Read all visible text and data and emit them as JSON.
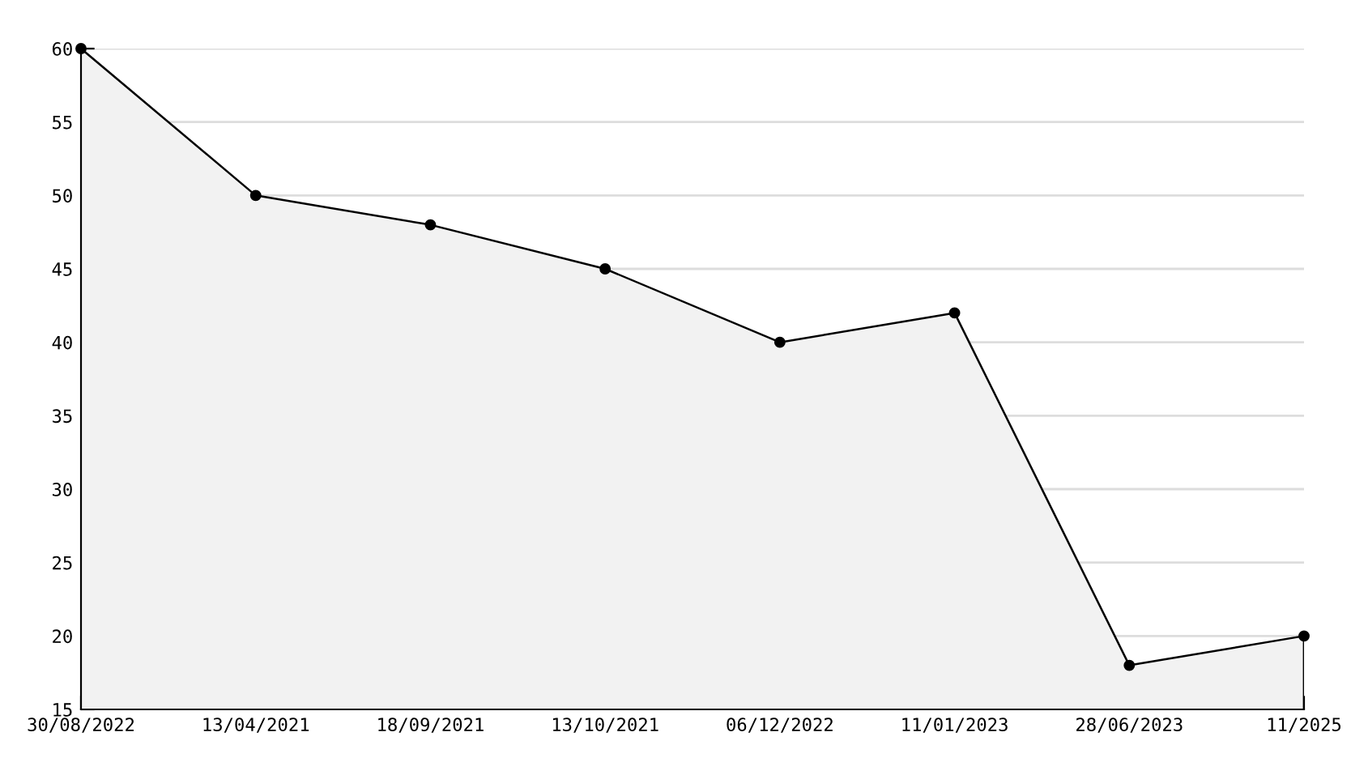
{
  "chart_data": {
    "type": "area",
    "categories": [
      "30/08/2022",
      "13/04/2021",
      "18/09/2021",
      "13/10/2021",
      "06/12/2022",
      "11/01/2023",
      "28/06/2023",
      "11/2025"
    ],
    "series": [
      {
        "color": "#000000",
        "values": [
          60,
          50,
          48,
          45,
          40,
          42,
          18,
          20
        ]
      }
    ],
    "ylim": [
      15,
      60
    ],
    "yticks": [
      15,
      20,
      25,
      30,
      35,
      40,
      45,
      50,
      55,
      60
    ],
    "grid": "y",
    "marker": "circle",
    "line_style": "solid"
  }
}
